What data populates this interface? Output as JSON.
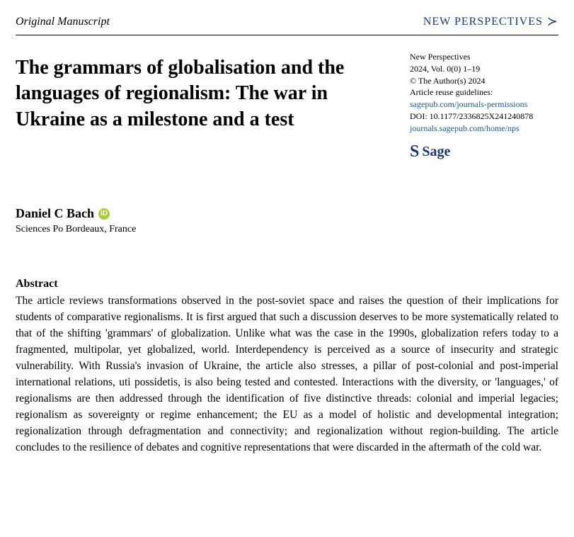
{
  "header": {
    "manuscript_type": "Original Manuscript",
    "journal_brand": "NEW PERSPECTIVES"
  },
  "meta": {
    "journal": "New Perspectives",
    "issue": "2024, Vol. 0(0) 1–19",
    "copyright": "© The Author(s) 2024",
    "reuse_label": "Article reuse guidelines:",
    "permissions_link": "sagepub.com/journals-permissions",
    "doi": "DOI: 10.1177/2336825X241240878",
    "journal_home": "journals.sagepub.com/home/nps",
    "publisher": "Sage"
  },
  "article": {
    "title": "The grammars of globalisation and the languages of regionalism: The war in Ukraine as a milestone and a test",
    "author": "Daniel C Bach",
    "affiliation": "Sciences Po Bordeaux, France",
    "abstract_heading": "Abstract",
    "abstract_text": "The article reviews transformations observed in the post-soviet space and raises the question of their implications for students of comparative regionalisms. It is first argued that such a discussion deserves to be more systematically related to that of the shifting 'grammars' of globalization. Unlike what was the case in the 1990s, globalization refers today to a fragmented, multipolar, yet globalized, world. Interdependency is perceived as a source of insecurity and strategic vulnerability. With Russia's invasion of Ukraine, the article also stresses, a pillar of post-colonial and post-imperial international relations, uti possidetis, is also being tested and contested. Interactions with the diversity, or 'languages,' of regionalisms are then addressed through the identification of five distinctive threads: colonial and imperial legacies; regionalism as sovereignty or regime enhancement; the EU as a model of holistic and developmental integration; regionalization through defragmentation and connectivity; and regionalization without region-building. The article concludes to the resilience of debates and cognitive representations that were discarded in the aftermath of the cold war."
  },
  "colors": {
    "brand_blue": "#1a3a6e",
    "link_blue": "#1a5490",
    "orcid_green": "#a6ce39",
    "text": "#000000",
    "background": "#ffffff"
  },
  "typography": {
    "title_fontsize": 28,
    "body_fontsize": 15.5,
    "meta_fontsize": 12,
    "author_fontsize": 18
  }
}
